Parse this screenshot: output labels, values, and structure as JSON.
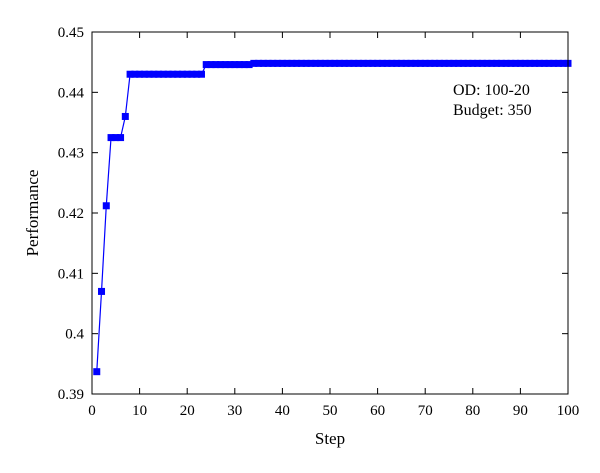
{
  "chart_data": {
    "type": "line",
    "title": "",
    "xlabel": "Step",
    "ylabel": "Performance",
    "xlim": [
      0,
      100
    ],
    "ylim": [
      0.39,
      0.45
    ],
    "x_ticks": [
      "0",
      "10",
      "20",
      "30",
      "40",
      "50",
      "60",
      "70",
      "80",
      "90",
      "100"
    ],
    "y_ticks": [
      "0.39",
      "0.4",
      "0.41",
      "0.42",
      "0.43",
      "0.44",
      "0.45"
    ],
    "x_tick_values": [
      0,
      10,
      20,
      30,
      40,
      50,
      60,
      70,
      80,
      90,
      100
    ],
    "y_tick_values": [
      0.39,
      0.4,
      0.41,
      0.42,
      0.43,
      0.44,
      0.45
    ],
    "grid": false,
    "annotations": [
      "OD: 100-20",
      "Budget: 350"
    ],
    "series": [
      {
        "color": "#0000ff",
        "marker": "square",
        "x": [
          1,
          2,
          3,
          4,
          5,
          6,
          7,
          8,
          9,
          10,
          11,
          12,
          13,
          14,
          15,
          16,
          17,
          18,
          19,
          20,
          21,
          22,
          23,
          24,
          25,
          26,
          27,
          28,
          29,
          30,
          31,
          32,
          33,
          34,
          35,
          36,
          37,
          38,
          39,
          40,
          41,
          42,
          43,
          44,
          45,
          46,
          47,
          48,
          49,
          50,
          51,
          52,
          53,
          54,
          55,
          56,
          57,
          58,
          59,
          60,
          61,
          62,
          63,
          64,
          65,
          66,
          67,
          68,
          69,
          70,
          71,
          72,
          73,
          74,
          75,
          76,
          77,
          78,
          79,
          80,
          81,
          82,
          83,
          84,
          85,
          86,
          87,
          88,
          89,
          90,
          91,
          92,
          93,
          94,
          95,
          96,
          97,
          98,
          99,
          100
        ],
        "y": [
          0.3937,
          0.407,
          0.4212,
          0.4325,
          0.4325,
          0.4325,
          0.436,
          0.443,
          0.443,
          0.443,
          0.443,
          0.443,
          0.443,
          0.443,
          0.443,
          0.443,
          0.443,
          0.443,
          0.443,
          0.443,
          0.443,
          0.443,
          0.443,
          0.4446,
          0.4446,
          0.4446,
          0.4446,
          0.4446,
          0.4446,
          0.4446,
          0.4446,
          0.4446,
          0.4446,
          0.4448,
          0.4448,
          0.4448,
          0.4448,
          0.4448,
          0.4448,
          0.4448,
          0.4448,
          0.4448,
          0.4448,
          0.4448,
          0.4448,
          0.4448,
          0.4448,
          0.4448,
          0.4448,
          0.4448,
          0.4448,
          0.4448,
          0.4448,
          0.4448,
          0.4448,
          0.4448,
          0.4448,
          0.4448,
          0.4448,
          0.4448,
          0.4448,
          0.4448,
          0.4448,
          0.4448,
          0.4448,
          0.4448,
          0.4448,
          0.4448,
          0.4448,
          0.4448,
          0.4448,
          0.4448,
          0.4448,
          0.4448,
          0.4448,
          0.4448,
          0.4448,
          0.4448,
          0.4448,
          0.4448,
          0.4448,
          0.4448,
          0.4448,
          0.4448,
          0.4448,
          0.4448,
          0.4448,
          0.4448,
          0.4448,
          0.4448,
          0.4448,
          0.4448,
          0.4448,
          0.4448,
          0.4448,
          0.4448,
          0.4448,
          0.4448,
          0.4448,
          0.4448
        ]
      }
    ]
  }
}
